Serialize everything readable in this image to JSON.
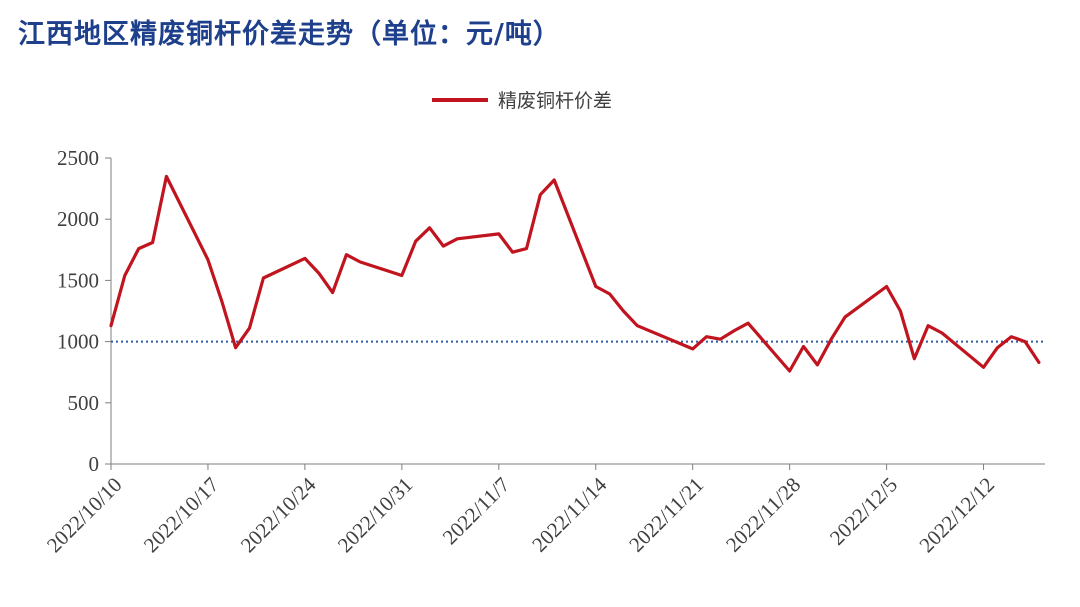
{
  "title": "江西地区精废铜杆价差走势（单位：元/吨）",
  "colors": {
    "title": "#1d3f8c",
    "series": "#c0141f",
    "reference": "#2e5aa8",
    "axis": "#7f7f7f",
    "text": "#404040"
  },
  "chart_data": {
    "type": "line",
    "title": "江西地区精废铜杆价差走势（单位：元/吨）",
    "xlabel": "",
    "ylabel": "",
    "ylim": [
      0,
      2500
    ],
    "yticks": [
      0,
      500,
      1000,
      1500,
      2000,
      2500
    ],
    "xticks": [
      "2022/10/10",
      "2022/10/17",
      "2022/10/24",
      "2022/10/31",
      "2022/11/7",
      "2022/11/14",
      "2022/11/21",
      "2022/11/28",
      "2022/12/5",
      "2022/12/12"
    ],
    "legend_position": "top-center",
    "grid": false,
    "reference_line": {
      "y": 1000,
      "style": "dotted"
    },
    "series": [
      {
        "name": "精废铜杆价差",
        "points": [
          [
            "2022/10/10",
            1130
          ],
          [
            "2022/10/11",
            1540
          ],
          [
            "2022/10/12",
            1760
          ],
          [
            "2022/10/13",
            1810
          ],
          [
            "2022/10/14",
            2350
          ],
          [
            "2022/10/17",
            1670
          ],
          [
            "2022/10/18",
            1330
          ],
          [
            "2022/10/19",
            950
          ],
          [
            "2022/10/20",
            1110
          ],
          [
            "2022/10/21",
            1520
          ],
          [
            "2022/10/24",
            1680
          ],
          [
            "2022/10/25",
            1560
          ],
          [
            "2022/10/26",
            1400
          ],
          [
            "2022/10/27",
            1710
          ],
          [
            "2022/10/28",
            1650
          ],
          [
            "2022/10/31",
            1540
          ],
          [
            "2022/11/1",
            1820
          ],
          [
            "2022/11/2",
            1930
          ],
          [
            "2022/11/3",
            1780
          ],
          [
            "2022/11/4",
            1840
          ],
          [
            "2022/11/7",
            1880
          ],
          [
            "2022/11/8",
            1730
          ],
          [
            "2022/11/9",
            1760
          ],
          [
            "2022/11/10",
            2200
          ],
          [
            "2022/11/11",
            2320
          ],
          [
            "2022/11/14",
            1450
          ],
          [
            "2022/11/15",
            1390
          ],
          [
            "2022/11/16",
            1250
          ],
          [
            "2022/11/17",
            1130
          ],
          [
            "2022/11/21",
            940
          ],
          [
            "2022/11/22",
            1040
          ],
          [
            "2022/11/23",
            1020
          ],
          [
            "2022/11/24",
            1090
          ],
          [
            "2022/11/25",
            1150
          ],
          [
            "2022/11/28",
            760
          ],
          [
            "2022/11/29",
            960
          ],
          [
            "2022/11/30",
            810
          ],
          [
            "2022/12/1",
            1020
          ],
          [
            "2022/12/2",
            1200
          ],
          [
            "2022/12/5",
            1450
          ],
          [
            "2022/12/6",
            1250
          ],
          [
            "2022/12/7",
            860
          ],
          [
            "2022/12/8",
            1130
          ],
          [
            "2022/12/9",
            1070
          ],
          [
            "2022/12/12",
            790
          ],
          [
            "2022/12/13",
            950
          ],
          [
            "2022/12/14",
            1040
          ],
          [
            "2022/12/15",
            1000
          ],
          [
            "2022/12/16",
            830
          ]
        ]
      }
    ]
  }
}
